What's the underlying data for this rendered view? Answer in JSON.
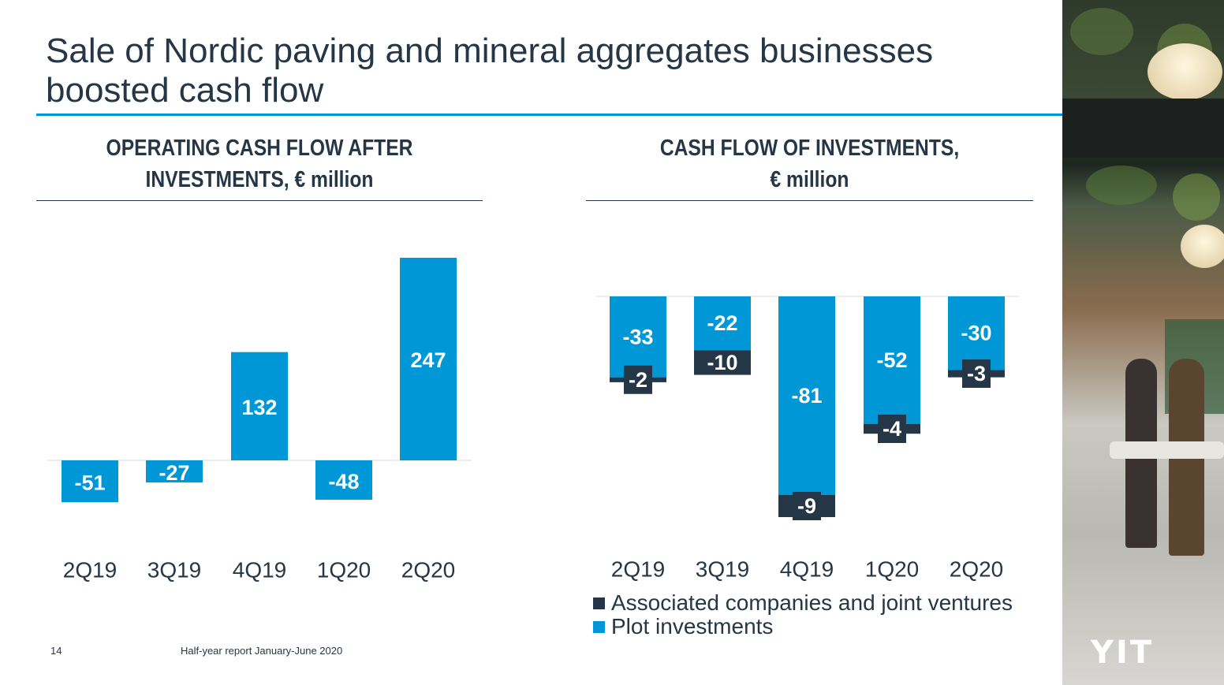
{
  "title": "Sale of Nordic paving and mineral aggregates businesses boosted cash flow",
  "colors": {
    "primary": "#0097d7",
    "dark": "#253746",
    "text": "#253746"
  },
  "chart_data": [
    {
      "type": "bar",
      "title_line1": "OPERATING CASH FLOW AFTER",
      "title_line2": "INVESTMENTS, € million",
      "categories": [
        "2Q19",
        "3Q19",
        "4Q19",
        "1Q20",
        "2Q20"
      ],
      "values": [
        -51,
        -27,
        132,
        -48,
        247
      ],
      "labels": [
        "-51",
        "-27",
        "132",
        "-48",
        "247"
      ],
      "ylim": [
        -60,
        260
      ]
    },
    {
      "type": "bar",
      "stacked": true,
      "title_line1": "CASH FLOW OF INVESTMENTS,",
      "title_line2": "€ million",
      "categories": [
        "2Q19",
        "3Q19",
        "4Q19",
        "1Q20",
        "2Q20"
      ],
      "series": [
        {
          "name": "Plot investments",
          "color": "#0097d7",
          "values": [
            -33,
            -22,
            -81,
            -52,
            -30
          ],
          "labels": [
            "-33",
            "-22",
            "-81",
            "-52",
            "-30"
          ]
        },
        {
          "name": "Associated companies and joint ventures",
          "color": "#253746",
          "values": [
            -2,
            -10,
            -9,
            -4,
            -3
          ],
          "labels": [
            "-2",
            "-10",
            "-9",
            "-4",
            "-3"
          ]
        }
      ],
      "ylim": [
        -95,
        0
      ]
    }
  ],
  "legend": [
    {
      "label": "Associated companies and joint ventures",
      "color": "#253746"
    },
    {
      "label": "Plot investments",
      "color": "#0097d7"
    }
  ],
  "footer": {
    "page": "14",
    "text": "Half-year report January-June 2020"
  },
  "logo": "YIT"
}
